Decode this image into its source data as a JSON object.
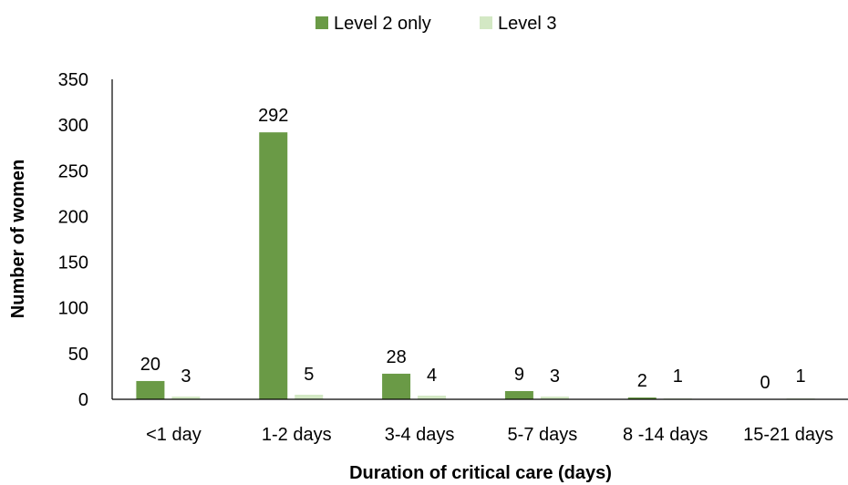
{
  "chart_data": {
    "type": "bar",
    "categories": [
      "<1 day",
      "1-2 days",
      "3-4 days",
      "5-7 days",
      "8 -14 days",
      "15-21 days"
    ],
    "series": [
      {
        "name": "Level 2 only",
        "values": [
          20,
          292,
          28,
          9,
          2,
          0
        ],
        "color": "#6a9a46"
      },
      {
        "name": "Level 3",
        "values": [
          3,
          5,
          4,
          3,
          1,
          1
        ],
        "color": "#d3e8c4"
      }
    ],
    "title": "",
    "xlabel": "Duration of critical care (days)",
    "ylabel": "Number of women",
    "ylim": [
      0,
      350
    ],
    "yticks": [
      0,
      50,
      100,
      150,
      200,
      250,
      300,
      350
    ],
    "grid": false,
    "legend": "top-center",
    "data_labels": true
  }
}
